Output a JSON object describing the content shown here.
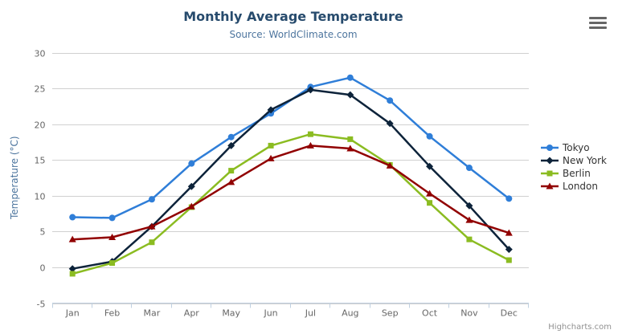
{
  "credits": "Highcharts.com",
  "icons": {
    "export_menu_icon": "hamburger-icon"
  },
  "colors": {
    "title": "#274b6d",
    "subtitle": "#4d759e",
    "axis_title": "#4d759e",
    "axis_label": "#666666",
    "grid_line": "#d0d0d0",
    "axis_line": "#c0d0e0",
    "legend_text": "#333333",
    "credits_text": "#909090"
  },
  "chart_data": {
    "type": "line",
    "title": "Monthly Average Temperature",
    "subtitle": "Source: WorldClimate.com",
    "xlabel": "",
    "ylabel": "Temperature (°C)",
    "ylim": [
      -5,
      30
    ],
    "ytick_step": 5,
    "grid": true,
    "legend_position": "right",
    "categories": [
      "Jan",
      "Feb",
      "Mar",
      "Apr",
      "May",
      "Jun",
      "Jul",
      "Aug",
      "Sep",
      "Oct",
      "Nov",
      "Dec"
    ],
    "series": [
      {
        "name": "Tokyo",
        "color": "#2f7ed8",
        "marker": "circle",
        "values": [
          7.0,
          6.9,
          9.5,
          14.5,
          18.2,
          21.5,
          25.2,
          26.5,
          23.3,
          18.3,
          13.9,
          9.6
        ]
      },
      {
        "name": "New York",
        "color": "#0d233a",
        "marker": "diamond",
        "values": [
          -0.2,
          0.8,
          5.7,
          11.3,
          17.0,
          22.0,
          24.8,
          24.1,
          20.1,
          14.1,
          8.6,
          2.5
        ]
      },
      {
        "name": "Berlin",
        "color": "#8bbc21",
        "marker": "square",
        "values": [
          -0.9,
          0.6,
          3.5,
          8.4,
          13.5,
          17.0,
          18.6,
          17.9,
          14.3,
          9.0,
          3.9,
          1.0
        ]
      },
      {
        "name": "London",
        "color": "#910000",
        "marker": "triangle",
        "values": [
          3.9,
          4.2,
          5.7,
          8.5,
          11.9,
          15.2,
          17.0,
          16.6,
          14.2,
          10.3,
          6.6,
          4.8
        ]
      }
    ]
  }
}
